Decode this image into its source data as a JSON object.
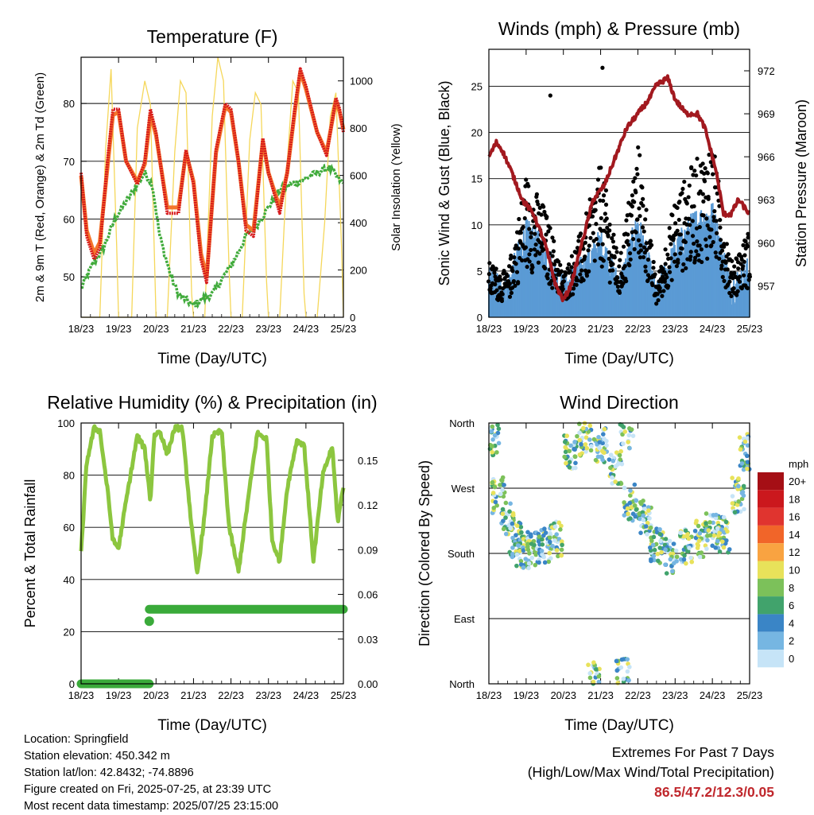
{
  "chart_data": [
    {
      "type": "line",
      "title": "Temperature (F)",
      "xlabel": "Time (Day/UTC)",
      "ylabel": "2m & 9m T (Red, Orange) & 2m Td (Green)",
      "y2label": "Solar Insolation (Yellow)",
      "x_ticks": [
        "18/23",
        "19/23",
        "20/23",
        "21/23",
        "22/23",
        "23/23",
        "24/23",
        "25/23"
      ],
      "ylim": [
        43,
        88
      ],
      "y_ticks": [
        50,
        60,
        70,
        80
      ],
      "y2lim": [
        0,
        1100
      ],
      "y2_ticks": [
        0,
        200,
        400,
        600,
        800,
        1000
      ],
      "grid": true,
      "series": [
        {
          "role": "temp_2m",
          "color": "#d7191c",
          "x": [
            0,
            0.15,
            0.35,
            0.5,
            0.72,
            0.85,
            1.0,
            1.2,
            1.5,
            1.7,
            1.85,
            2.0,
            2.3,
            2.6,
            2.8,
            3.0,
            3.2,
            3.35,
            3.6,
            3.85,
            4.0,
            4.2,
            4.4,
            4.6,
            4.85,
            5.0,
            5.3,
            5.5,
            5.7,
            5.85,
            6.0,
            6.3,
            6.55,
            6.8,
            6.9,
            7.0
          ],
          "y": [
            68,
            57,
            53,
            55,
            71,
            79,
            79,
            70,
            66,
            70,
            79,
            75,
            61,
            61,
            72,
            66,
            53,
            49,
            72,
            80,
            79,
            70,
            58,
            57,
            74,
            68,
            61,
            68,
            79,
            86,
            83,
            75,
            71,
            81,
            79,
            75
          ]
        },
        {
          "role": "temp_9m",
          "color": "#f4762c",
          "x": [
            0,
            0.15,
            0.35,
            0.5,
            0.72,
            0.85,
            1.0,
            1.2,
            1.5,
            1.7,
            1.85,
            2.0,
            2.3,
            2.6,
            2.8,
            3.0,
            3.2,
            3.35,
            3.6,
            3.85,
            4.0,
            4.2,
            4.4,
            4.6,
            4.85,
            5.0,
            5.3,
            5.5,
            5.7,
            5.85,
            6.0,
            6.3,
            6.55,
            6.8,
            6.9,
            7.0
          ],
          "y": [
            67.5,
            58,
            54,
            56,
            70,
            78,
            78.5,
            70,
            66.5,
            69.5,
            78,
            74.5,
            62,
            62,
            71.5,
            66.5,
            54,
            50,
            71.5,
            79.5,
            78.5,
            70,
            59,
            58,
            73.5,
            68,
            62,
            68,
            78.5,
            85.5,
            82.5,
            75,
            71.5,
            80.5,
            78.5,
            75.5
          ]
        },
        {
          "role": "dewpoint_2m",
          "color": "#41ab3c",
          "x": [
            0,
            0.3,
            0.6,
            0.9,
            1.2,
            1.5,
            1.7,
            1.9,
            2.1,
            2.4,
            2.6,
            2.8,
            3.0,
            3.2,
            3.5,
            3.8,
            4.1,
            4.4,
            4.7,
            5.0,
            5.3,
            5.6,
            6.0,
            6.3,
            6.6,
            7.0
          ],
          "y": [
            48,
            52,
            55,
            60,
            63,
            66,
            68,
            66,
            57,
            50,
            47,
            46,
            45,
            46,
            47,
            50,
            53,
            57,
            59,
            62,
            65,
            66,
            67,
            68,
            69,
            66
          ]
        },
        {
          "role": "solar_insolation",
          "color": "#f5d75a",
          "axis": "y2",
          "x": [
            0,
            0.5,
            0.65,
            0.8,
            0.95,
            1.0,
            1.35,
            1.5,
            1.7,
            1.85,
            2.0,
            2.3,
            2.5,
            2.65,
            2.8,
            2.95,
            3.0,
            3.3,
            3.5,
            3.65,
            3.8,
            3.95,
            4.0,
            4.3,
            4.5,
            4.65,
            4.8,
            4.95,
            5.0,
            5.3,
            5.5,
            5.65,
            5.8,
            5.95,
            6.0,
            6.3,
            6.5,
            6.65,
            6.8,
            6.95,
            7.0
          ],
          "y": [
            0,
            0,
            700,
            1050,
            300,
            0,
            0,
            800,
            1000,
            900,
            0,
            0,
            700,
            1000,
            950,
            100,
            0,
            0,
            850,
            1100,
            1000,
            200,
            0,
            0,
            750,
            950,
            900,
            150,
            0,
            0,
            650,
            1000,
            950,
            100,
            0,
            0,
            400,
            850,
            950,
            300,
            0
          ]
        }
      ]
    },
    {
      "type": "scatter",
      "title": "Winds (mph) & Pressure (mb)",
      "xlabel": "Time (Day/UTC)",
      "ylabel": "Sonic Wind & Gust (Blue, Black)",
      "y2label": "Station Pressure (Maroon)",
      "x_ticks": [
        "18/23",
        "19/23",
        "20/23",
        "21/23",
        "22/23",
        "23/23",
        "24/23",
        "25/23"
      ],
      "ylim": [
        0,
        29
      ],
      "y_ticks": [
        0,
        5,
        10,
        15,
        20,
        25
      ],
      "y2lim": [
        954.8,
        973.5
      ],
      "y2_ticks": [
        957,
        960,
        963,
        966,
        969,
        972
      ],
      "grid": true,
      "series": [
        {
          "role": "wind_envelope",
          "color": "#5b9bd5",
          "x": [
            0,
            0.5,
            1.0,
            1.5,
            2.0,
            2.5,
            3.0,
            3.5,
            4.0,
            4.5,
            5.0,
            5.5,
            6.0,
            6.5,
            7.0
          ],
          "y": [
            3,
            2,
            8,
            6,
            2,
            4,
            7,
            2,
            9,
            1,
            6,
            9,
            10,
            2,
            4
          ]
        },
        {
          "role": "gust_envelope",
          "color": "#000000",
          "x": [
            0,
            0.5,
            1.0,
            1.5,
            2.0,
            2.5,
            3.0,
            3.5,
            4.0,
            4.5,
            5.0,
            5.5,
            6.0,
            6.5,
            7.0
          ],
          "y": [
            5,
            4,
            13,
            10,
            4,
            8,
            14,
            5,
            16,
            3,
            11,
            14,
            16,
            5,
            8
          ]
        },
        {
          "role": "pressure",
          "color": "#a2191f",
          "axis": "y2",
          "x": [
            0,
            0.2,
            0.35,
            0.6,
            0.9,
            1.2,
            1.5,
            1.8,
            2.0,
            2.2,
            2.5,
            2.8,
            3.1,
            3.4,
            3.7,
            4.0,
            4.3,
            4.5,
            4.8,
            5.0,
            5.3,
            5.6,
            5.8,
            6.0,
            6.1,
            6.3,
            6.5,
            6.7,
            7.0
          ],
          "y": [
            966,
            967,
            966.5,
            965,
            963,
            962,
            960,
            957,
            956,
            957,
            960,
            963,
            964,
            966,
            968,
            969,
            970,
            971,
            971.5,
            970,
            969,
            969,
            968,
            966,
            965,
            962,
            962,
            963,
            962
          ]
        }
      ],
      "peak_gust_labels": [
        27,
        24
      ]
    },
    {
      "type": "line",
      "title": "Relative Humidity (%) & Precipitation (in)",
      "xlabel": "Time (Day/UTC)",
      "ylabel": "Percent & Total Rainfall",
      "x_ticks": [
        "18/23",
        "19/23",
        "20/23",
        "21/23",
        "22/23",
        "23/23",
        "24/23",
        "25/23"
      ],
      "ylim": [
        0,
        100
      ],
      "y_ticks": [
        0,
        20,
        40,
        60,
        80,
        100
      ],
      "y2lim": [
        0,
        0.175
      ],
      "y2_ticks": [
        "0.00",
        "0.03",
        "0.06",
        "0.09",
        "0.12",
        "0.15"
      ],
      "grid": true,
      "series": [
        {
          "role": "relative_humidity",
          "color": "#8cc63f",
          "x": [
            0,
            0.15,
            0.35,
            0.5,
            0.7,
            0.85,
            1.0,
            1.2,
            1.5,
            1.7,
            1.85,
            1.95,
            2.1,
            2.3,
            2.5,
            2.7,
            2.95,
            3.1,
            3.3,
            3.5,
            3.75,
            3.95,
            4.2,
            4.45,
            4.7,
            4.95,
            5.1,
            5.3,
            5.5,
            5.75,
            5.95,
            6.2,
            6.45,
            6.7,
            6.85,
            7.0
          ],
          "y": [
            50,
            85,
            98,
            97,
            75,
            55,
            52,
            70,
            95,
            90,
            70,
            95,
            97,
            88,
            98,
            98,
            60,
            42,
            65,
            95,
            97,
            60,
            43,
            70,
            96,
            94,
            55,
            47,
            75,
            93,
            92,
            47,
            80,
            91,
            62,
            76
          ]
        },
        {
          "role": "total_precipitation",
          "color": "#3aaa3a",
          "axis": "y2",
          "x": [
            0,
            1.6,
            1.82,
            1.82,
            7.0
          ],
          "y": [
            0.0,
            0.0,
            0.0,
            0.05,
            0.05
          ]
        }
      ]
    },
    {
      "type": "scatter",
      "title": "Wind Direction",
      "xlabel": "Time (Day/UTC)",
      "ylabel": "Direction (Colored By Speed)",
      "x_ticks": [
        "18/23",
        "19/23",
        "20/23",
        "21/23",
        "22/23",
        "23/23",
        "24/23",
        "25/23"
      ],
      "y_ticks": [
        "North",
        "East",
        "South",
        "West",
        "North"
      ],
      "ylim": [
        0,
        360
      ],
      "grid": true,
      "colorbar": {
        "unit": "mph",
        "labels": [
          "20+",
          "18",
          "16",
          "14",
          "12",
          "10",
          "8",
          "6",
          "4",
          "2",
          "0"
        ],
        "colors": [
          "#a50f15",
          "#cb181d",
          "#e0342f",
          "#f16529",
          "#f9a341",
          "#e8e25a",
          "#7cc15a",
          "#41a36c",
          "#3a85c6",
          "#76b6e2",
          "#c6e4f7"
        ]
      },
      "clusters": [
        {
          "x": 0.1,
          "y": 340
        },
        {
          "x": 0.25,
          "y": 260
        },
        {
          "x": 0.5,
          "y": 230
        },
        {
          "x": 0.7,
          "y": 200
        },
        {
          "x": 0.9,
          "y": 180
        },
        {
          "x": 1.2,
          "y": 185
        },
        {
          "x": 1.5,
          "y": 190
        },
        {
          "x": 1.8,
          "y": 200
        },
        {
          "x": 2.2,
          "y": 320
        },
        {
          "x": 2.6,
          "y": 340
        },
        {
          "x": 3.0,
          "y": 330
        },
        {
          "x": 3.4,
          "y": 300
        },
        {
          "x": 3.7,
          "y": 350
        },
        {
          "x": 3.8,
          "y": 250
        },
        {
          "x": 4.2,
          "y": 230
        },
        {
          "x": 4.5,
          "y": 190
        },
        {
          "x": 4.9,
          "y": 175
        },
        {
          "x": 5.3,
          "y": 190
        },
        {
          "x": 5.7,
          "y": 200
        },
        {
          "x": 6.0,
          "y": 210
        },
        {
          "x": 6.3,
          "y": 205
        },
        {
          "x": 6.7,
          "y": 260
        },
        {
          "x": 6.9,
          "y": 320
        },
        {
          "x": 2.8,
          "y": 5
        },
        {
          "x": 3.6,
          "y": 10
        }
      ]
    }
  ],
  "info": {
    "location": "Location: Springfield",
    "elevation": "Station elevation: 450.342 m",
    "latlon": "Station lat/lon: 42.8432; -74.8896",
    "created": "Figure created on Fri, 2025-07-25, at 23:39 UTC",
    "recent": "Most recent data timestamp: 2025/07/25 23:15:00"
  },
  "extremes": {
    "heading": "Extremes For Past 7 Days",
    "subheading": "(High/Low/Max Wind/Total Precipitation)",
    "values": "86.5/47.2/12.3/0.05"
  }
}
